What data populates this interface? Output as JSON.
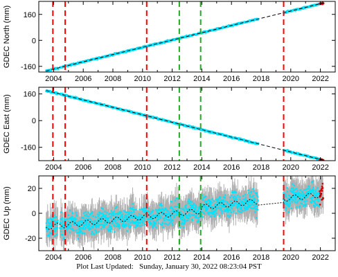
{
  "chart_data": [
    {
      "type": "scatter",
      "ylabel": "GDEC North (mm)",
      "x_ticks": [
        "2004",
        "2006",
        "2008",
        "2010",
        "2012",
        "2014",
        "2016",
        "2018",
        "2020",
        "2022"
      ],
      "y_ticks": [
        -160,
        0,
        160
      ],
      "xlim": [
        2003.0,
        2023.0
      ],
      "ylim": [
        -195,
        240
      ],
      "trend": [
        [
          2003.5,
          -188
        ],
        [
          2022.2,
          230
        ]
      ],
      "data_gap": [
        2017.8,
        2019.5
      ],
      "data_end_red": true
    },
    {
      "type": "scatter",
      "ylabel": "GDEC East (mm)",
      "x_ticks": [
        "2004",
        "2006",
        "2008",
        "2010",
        "2012",
        "2014",
        "2016",
        "2018",
        "2020",
        "2022"
      ],
      "y_ticks": [
        -160,
        0,
        160
      ],
      "xlim": [
        2003.0,
        2023.0
      ],
      "ylim": [
        -240,
        200
      ],
      "trend": [
        [
          2003.5,
          180
        ],
        [
          2022.2,
          -237
        ]
      ],
      "data_gap": [
        2017.8,
        2019.5
      ],
      "data_end_red": true
    },
    {
      "type": "scatter",
      "ylabel": "GDEC Up (mm)",
      "x_ticks": [
        "2004",
        "2006",
        "2008",
        "2010",
        "2012",
        "2014",
        "2016",
        "2018",
        "2020",
        "2022"
      ],
      "y_ticks": [
        -20,
        0,
        20
      ],
      "xlim": [
        2003.0,
        2023.0
      ],
      "ylim": [
        -30,
        30
      ],
      "trend": [
        [
          2003.5,
          -11
        ],
        [
          2022.2,
          12
        ]
      ],
      "data_gap": [
        2017.8,
        2019.5
      ],
      "data_end_red": true
    }
  ],
  "event_lines": {
    "red": [
      2003.95,
      2004.78,
      2010.28,
      2019.52
    ],
    "green": [
      2012.48,
      2013.92
    ]
  },
  "colors": {
    "data": "#00e5ff",
    "error_bars": "#b0b0b0",
    "trend": "#000000",
    "red_lines": "#ff0000",
    "green_lines": "#22aa22",
    "last_points": "#dd0000"
  },
  "footer": "Plot Last Updated:   Sunday, January 30, 2022 08:23:04 PST"
}
